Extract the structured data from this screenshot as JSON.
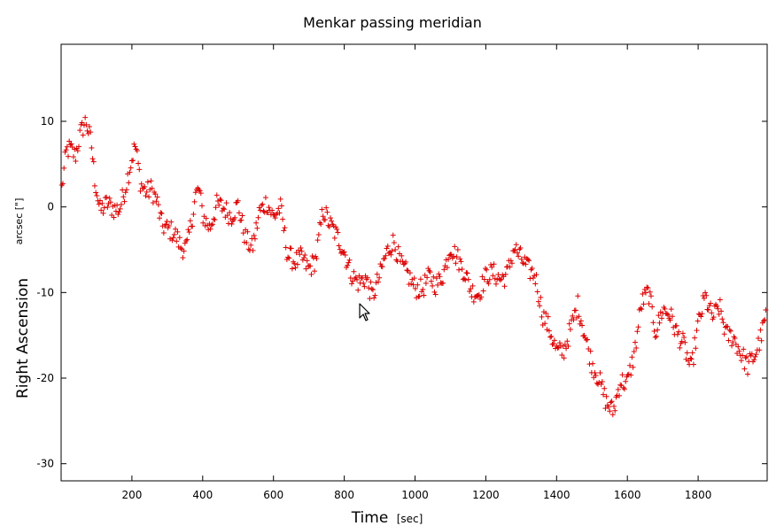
{
  "chart_data": {
    "type": "scatter",
    "title": "Menkar passing meridian",
    "xlabel": "Time",
    "xlabel_unit": "[sec]",
    "ylabel": "Right Ascension",
    "ylabel_unit": "arcsec [\"]",
    "xlim": [
      0,
      1995
    ],
    "ylim": [
      -32,
      19
    ],
    "xticks": [
      200,
      400,
      600,
      800,
      1000,
      1200,
      1400,
      1600,
      1800
    ],
    "yticks": [
      10,
      0,
      -10,
      -20,
      -30
    ],
    "grid": false,
    "marker": "+",
    "color": "#dd0000",
    "anchors": [
      [
        0,
        1.5
      ],
      [
        15,
        6
      ],
      [
        25,
        6
      ],
      [
        40,
        5
      ],
      [
        55,
        8
      ],
      [
        70,
        10
      ],
      [
        85,
        8
      ],
      [
        95,
        4
      ],
      [
        110,
        0.5
      ],
      [
        130,
        1
      ],
      [
        150,
        -0.5
      ],
      [
        165,
        -1
      ],
      [
        180,
        1
      ],
      [
        195,
        4
      ],
      [
        210,
        7
      ],
      [
        225,
        3
      ],
      [
        240,
        2.5
      ],
      [
        255,
        3
      ],
      [
        270,
        1.5
      ],
      [
        285,
        -2
      ],
      [
        300,
        -3
      ],
      [
        320,
        -4
      ],
      [
        340,
        -5.5
      ],
      [
        355,
        -5
      ],
      [
        370,
        -1
      ],
      [
        380,
        2
      ],
      [
        390,
        3
      ],
      [
        400,
        0
      ],
      [
        420,
        -2
      ],
      [
        440,
        0
      ],
      [
        460,
        -1
      ],
      [
        480,
        -2
      ],
      [
        500,
        0
      ],
      [
        520,
        -3
      ],
      [
        540,
        -4
      ],
      [
        560,
        0
      ],
      [
        580,
        0.5
      ],
      [
        600,
        -2
      ],
      [
        620,
        -1
      ],
      [
        640,
        -6
      ],
      [
        660,
        -6
      ],
      [
        680,
        -5
      ],
      [
        700,
        -6.5
      ],
      [
        720,
        -6
      ],
      [
        740,
        -1
      ],
      [
        760,
        -3
      ],
      [
        780,
        -4
      ],
      [
        800,
        -5
      ],
      [
        820,
        -7
      ],
      [
        840,
        -8
      ],
      [
        860,
        -8
      ],
      [
        880,
        -11
      ],
      [
        900,
        -9
      ],
      [
        920,
        -6
      ],
      [
        940,
        -4
      ],
      [
        960,
        -6
      ],
      [
        980,
        -7
      ],
      [
        1000,
        -9
      ],
      [
        1020,
        -10
      ],
      [
        1040,
        -9
      ],
      [
        1060,
        -10
      ],
      [
        1080,
        -8
      ],
      [
        1100,
        -4
      ],
      [
        1120,
        -5
      ],
      [
        1140,
        -7
      ],
      [
        1160,
        -10
      ],
      [
        1180,
        -11
      ],
      [
        1200,
        -9
      ],
      [
        1220,
        -8
      ],
      [
        1240,
        -8
      ],
      [
        1260,
        -7
      ],
      [
        1280,
        -4
      ],
      [
        1300,
        -6
      ],
      [
        1320,
        -8
      ],
      [
        1340,
        -9
      ],
      [
        1360,
        -13
      ],
      [
        1380,
        -14
      ],
      [
        1400,
        -16
      ],
      [
        1420,
        -16
      ],
      [
        1440,
        -14
      ],
      [
        1460,
        -12
      ],
      [
        1480,
        -16
      ],
      [
        1500,
        -19
      ],
      [
        1520,
        -20
      ],
      [
        1540,
        -22
      ],
      [
        1560,
        -23
      ],
      [
        1580,
        -20
      ],
      [
        1600,
        -21
      ],
      [
        1620,
        -18
      ],
      [
        1640,
        -12
      ],
      [
        1660,
        -10
      ],
      [
        1680,
        -14
      ],
      [
        1700,
        -11
      ],
      [
        1720,
        -12
      ],
      [
        1740,
        -15
      ],
      [
        1760,
        -17
      ],
      [
        1780,
        -20
      ],
      [
        1800,
        -14
      ],
      [
        1820,
        -10
      ],
      [
        1840,
        -12
      ],
      [
        1860,
        -11
      ],
      [
        1880,
        -15
      ],
      [
        1900,
        -16
      ],
      [
        1920,
        -18
      ],
      [
        1940,
        -19
      ],
      [
        1960,
        -17
      ],
      [
        1980,
        -14
      ],
      [
        1995,
        -11
      ]
    ]
  }
}
